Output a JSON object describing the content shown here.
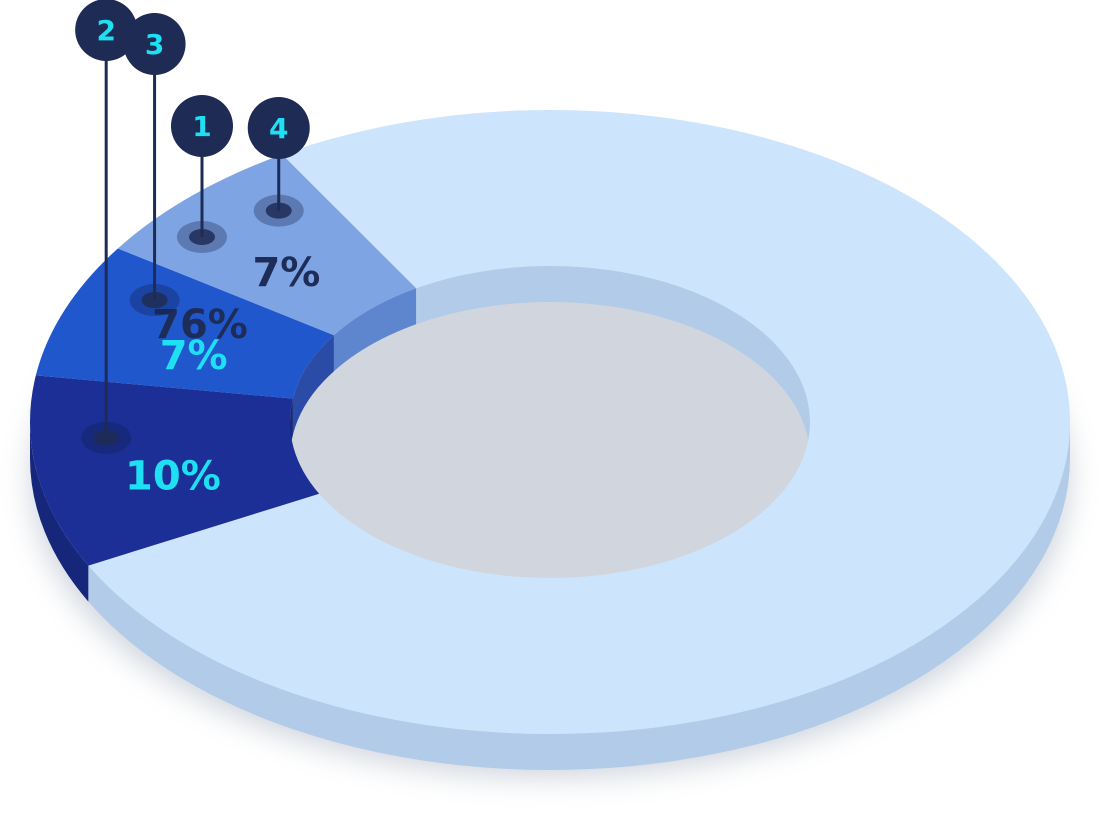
{
  "chart_data": {
    "type": "pie",
    "variant": "3d-donut",
    "slices": [
      {
        "marker": "1",
        "value": 76,
        "label": "76%",
        "color": "#cce4fc",
        "side_color": "#b1cbe8",
        "label_color": "#1e2d58"
      },
      {
        "marker": "2",
        "value": 10,
        "label": "10%",
        "color": "#1b2f96",
        "side_color": "#16267a",
        "label_color": "#1ee0f2"
      },
      {
        "marker": "3",
        "value": 7,
        "label": "7%",
        "color": "#2157cc",
        "side_color": "#2b4ca6",
        "label_color": "#1ee0f2"
      },
      {
        "marker": "4",
        "value": 7,
        "label": "7%",
        "color": "#7ea4e4",
        "side_color": "#5e86cf",
        "label_color": "#1e2d58"
      }
    ],
    "marker_color": "#1e2b55",
    "marker_text_color": "#1ee0f2",
    "legend": "none"
  }
}
